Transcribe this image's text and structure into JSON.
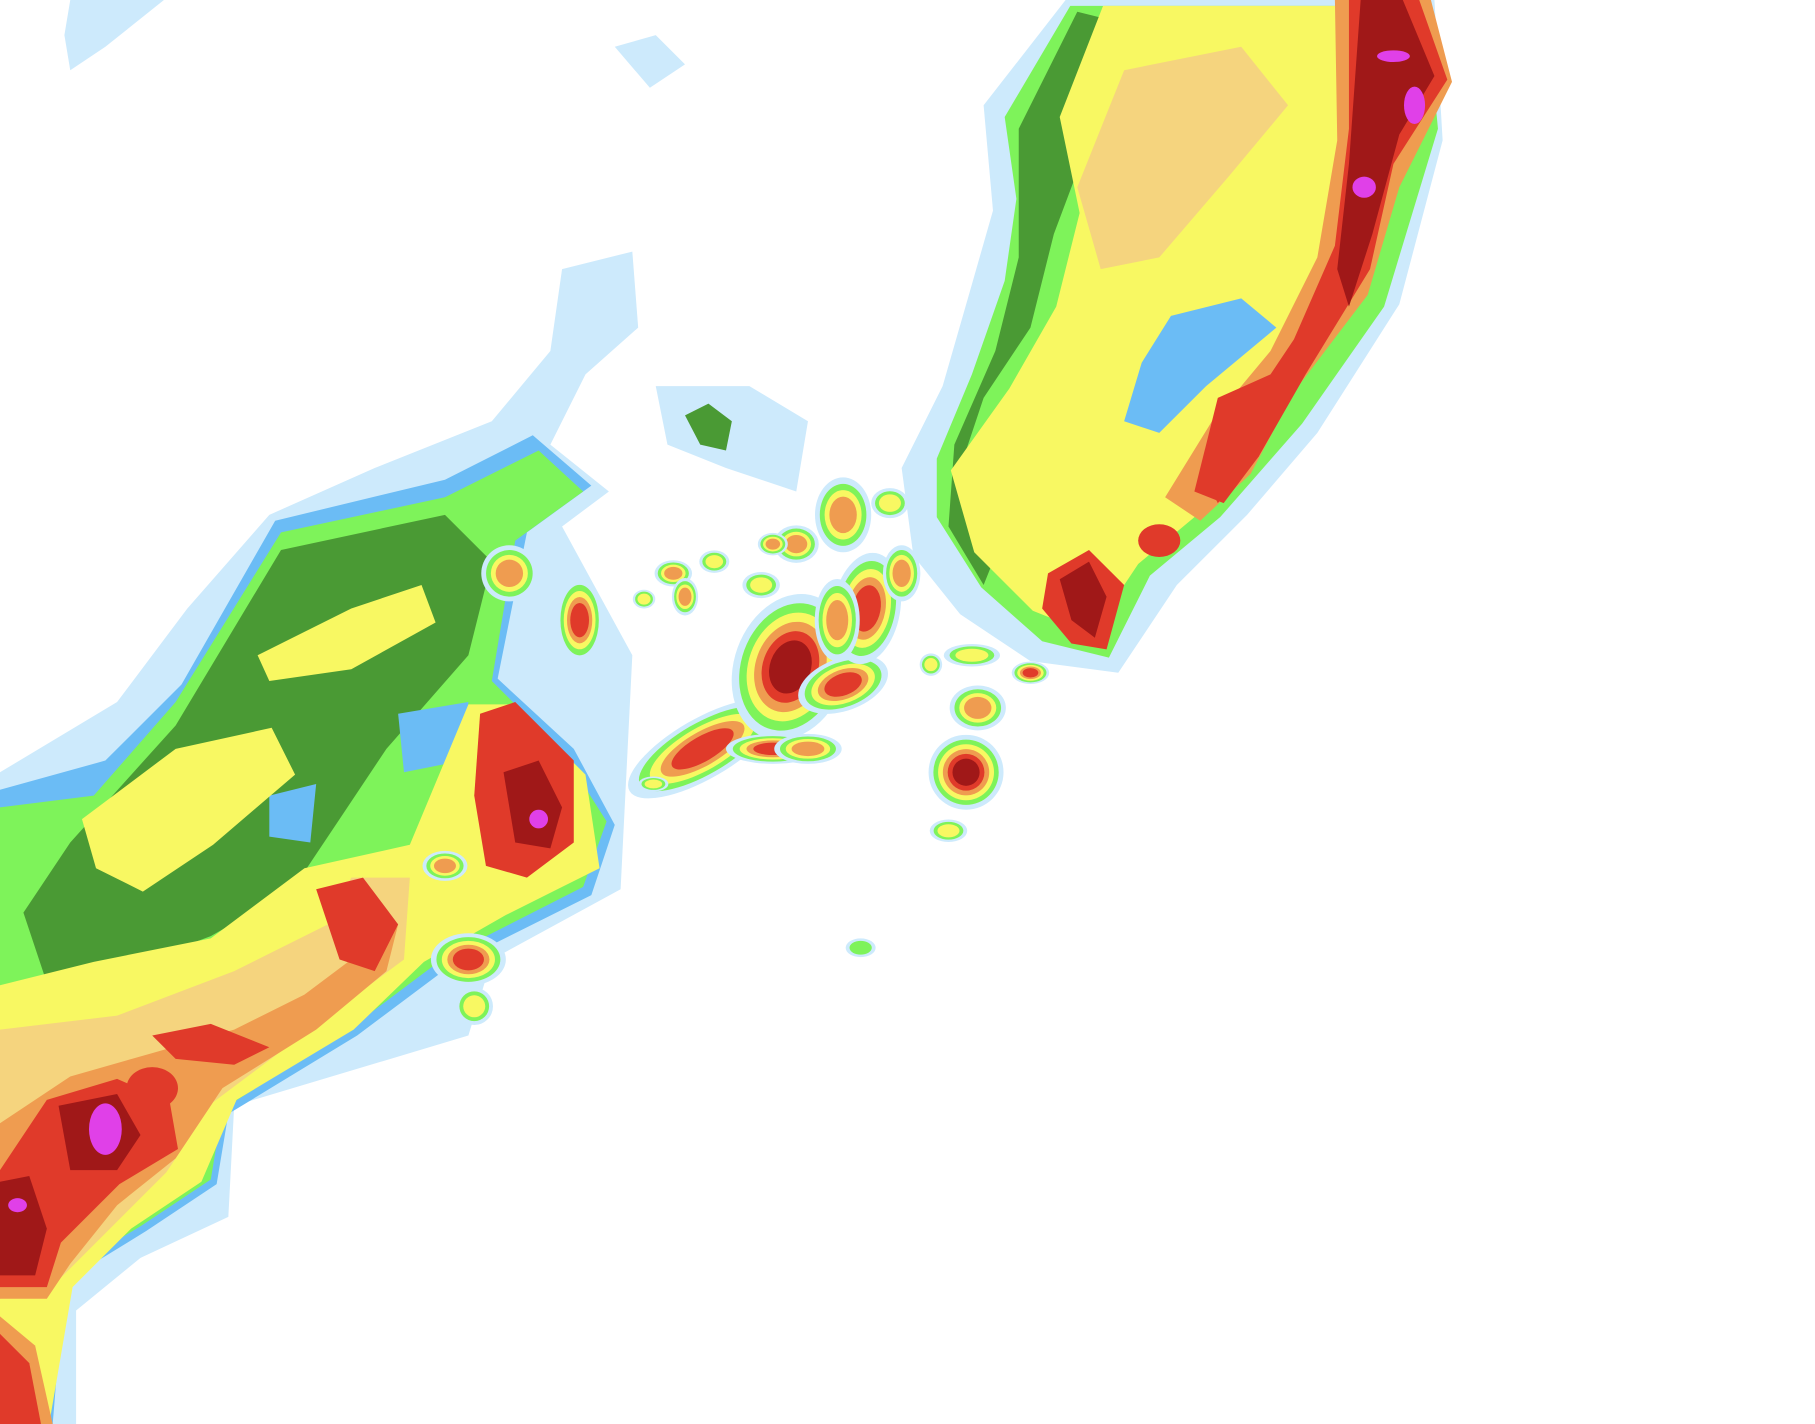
{
  "map": {
    "kind": "precipitation-radar",
    "background": "#ffffff",
    "palette": {
      "very_light": "#cdeafc",
      "light_blue": "#6bbcf5",
      "light_green": "#7ef35a",
      "dark_green": "#4a9a34",
      "yellow": "#f8f862",
      "tan": "#f5d47e",
      "orange": "#ef9c50",
      "red": "#e03a2a",
      "dark_red": "#a01818",
      "magenta": "#e040e8"
    }
  }
}
